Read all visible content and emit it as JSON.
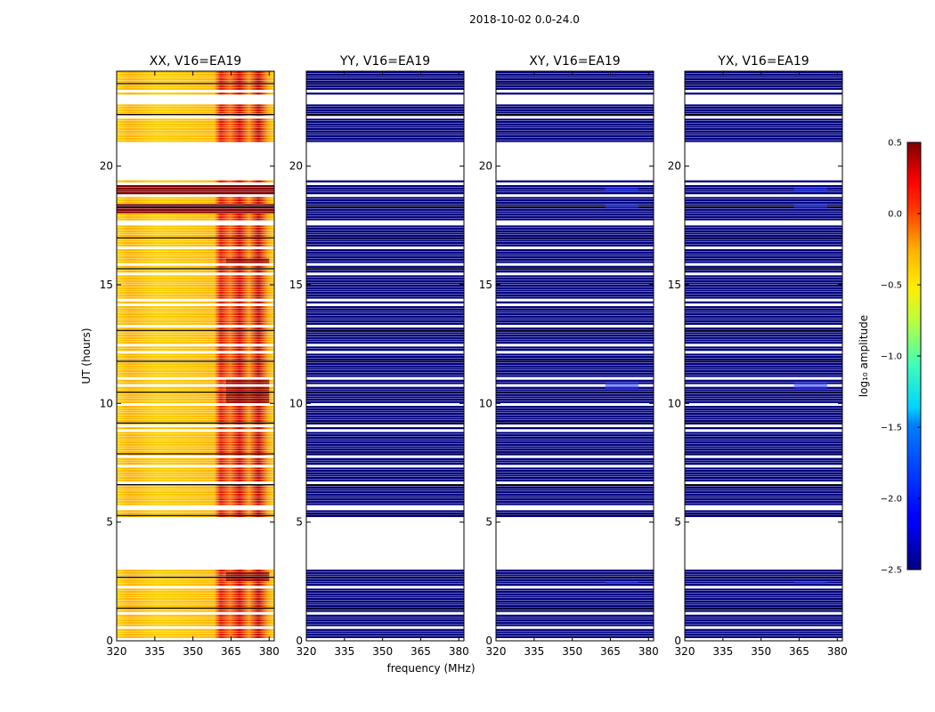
{
  "chart_data": {
    "type": "heatmap",
    "suptitle": "2018-10-02 0.0-24.0",
    "xlabel": "frequency (MHz)",
    "ylabel": "UT (hours)",
    "xlim": [
      320,
      382
    ],
    "ylim": [
      0,
      24
    ],
    "xticks": [
      "320",
      "335",
      "350",
      "365",
      "380"
    ],
    "yticks": [
      "0",
      "5",
      "10",
      "15",
      "20"
    ],
    "panels": [
      {
        "title": "XX, V16=EA19",
        "level": "high"
      },
      {
        "title": "YY, V16=EA19",
        "level": "low"
      },
      {
        "title": "XY, V16=EA19",
        "level": "low",
        "blips": true
      },
      {
        "title": "YX, V16=EA19",
        "level": "low",
        "blips": true
      }
    ],
    "flagged_hours": [
      [
        3.0,
        5.2
      ],
      [
        19.4,
        21.0
      ],
      [
        22.7,
        23.0
      ]
    ],
    "saturated_hours": [
      [
        18.8,
        19.3
      ],
      [
        18.0,
        18.4
      ]
    ],
    "rfi_band_mhz": [
      363,
      380
    ],
    "strong_rfi_hours": [
      [
        10.0,
        11.1
      ],
      [
        2.5,
        2.9
      ],
      [
        15.8,
        16.1
      ]
    ],
    "colorbar": {
      "label": "log₁₀ amplitude",
      "range": [
        -2.5,
        0.5
      ],
      "ticks": [
        "0.5",
        "0.0",
        "−0.5",
        "−1.0",
        "−1.5",
        "−2.0",
        "−2.5"
      ],
      "colormap": "jet"
    },
    "colors": {
      "low": "#00007f",
      "saturated": "#800000",
      "blip": "#2a3cff"
    }
  }
}
